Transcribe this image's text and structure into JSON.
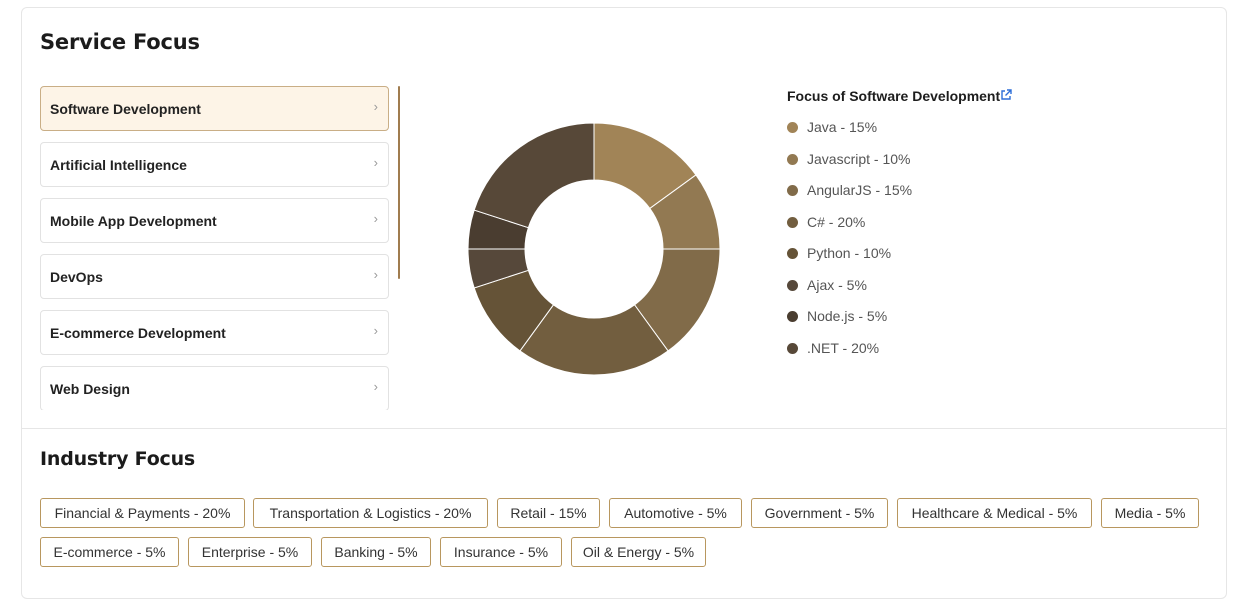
{
  "service_focus": {
    "title": "Service Focus",
    "items": [
      {
        "label": "Software Development",
        "active": true
      },
      {
        "label": "Artificial Intelligence",
        "active": false
      },
      {
        "label": "Mobile App Development",
        "active": false
      },
      {
        "label": "DevOps",
        "active": false
      },
      {
        "label": "E-commerce Development",
        "active": false
      },
      {
        "label": "Web Design",
        "active": false
      }
    ],
    "chevron": "›"
  },
  "chart_data": {
    "type": "pie",
    "title": "Focus of Software Development",
    "categories": [
      "Java",
      "Javascript",
      "AngularJS",
      "C#",
      "Python",
      "Ajax",
      "Node.js",
      ".NET"
    ],
    "values": [
      15,
      10,
      15,
      20,
      10,
      5,
      5,
      20
    ],
    "colors": [
      "#a18457",
      "#927952",
      "#816b49",
      "#725e3f",
      "#655337",
      "#56483a",
      "#4a3d30",
      "#574838"
    ],
    "labels": [
      "Java  -  15%",
      "Javascript  -  10%",
      "AngularJS  -  15%",
      "C#  -  20%",
      "Python  -  10%",
      "Ajax  -  5%",
      "Node.js  -  5%",
      ".NET  -  20%"
    ]
  },
  "industry_focus": {
    "title": "Industry Focus",
    "tags": [
      "Financial & Payments - 20%",
      "Transportation & Logistics - 20%",
      "Retail - 15%",
      "Automotive - 5%",
      "Government - 5%",
      "Healthcare & Medical - 5%",
      "Media - 5%",
      "E-commerce - 5%",
      "Enterprise - 5%",
      "Banking - 5%",
      "Insurance - 5%",
      "Oil & Energy - 5%"
    ]
  },
  "icons": {
    "external_link": "external-link-icon"
  }
}
